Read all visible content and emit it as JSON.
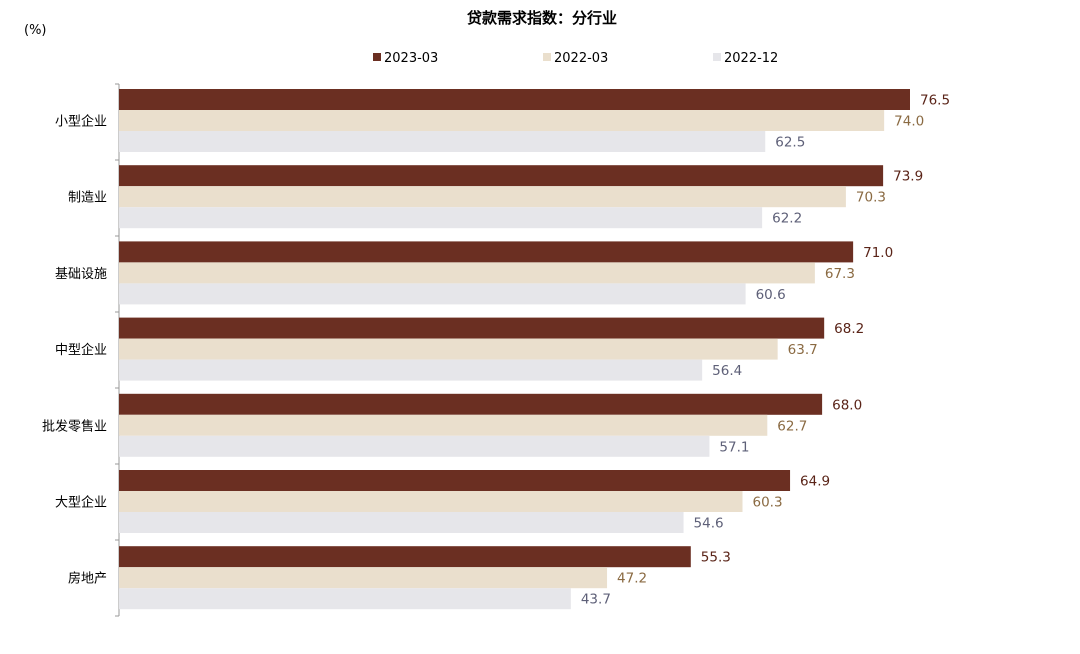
{
  "chart_data": {
    "type": "bar",
    "orientation": "horizontal",
    "title": "贷款需求指数：分行业",
    "unit_label": "(%)",
    "categories": [
      "小型企业",
      "制造业",
      "基础设施",
      "中型企业",
      "批发零售业",
      "大型企业",
      "房地产"
    ],
    "series": [
      {
        "name": "2023-03",
        "color": "#6B2F22",
        "label_color": "#5A2418",
        "values": [
          76.5,
          73.9,
          71.0,
          68.2,
          68.0,
          64.9,
          55.3
        ]
      },
      {
        "name": "2022-03",
        "color": "#EADFCD",
        "label_color": "#8A6A42",
        "values": [
          74.0,
          70.3,
          67.3,
          63.7,
          62.7,
          60.3,
          47.2
        ]
      },
      {
        "name": "2022-12",
        "color": "#E6E6EA",
        "label_color": "#5E6078",
        "values": [
          62.5,
          62.2,
          60.6,
          56.4,
          57.1,
          54.6,
          43.7
        ]
      }
    ],
    "xlim": [
      0,
      76.5
    ],
    "grid": false,
    "legend_position": "top-center",
    "data_labels": true
  }
}
